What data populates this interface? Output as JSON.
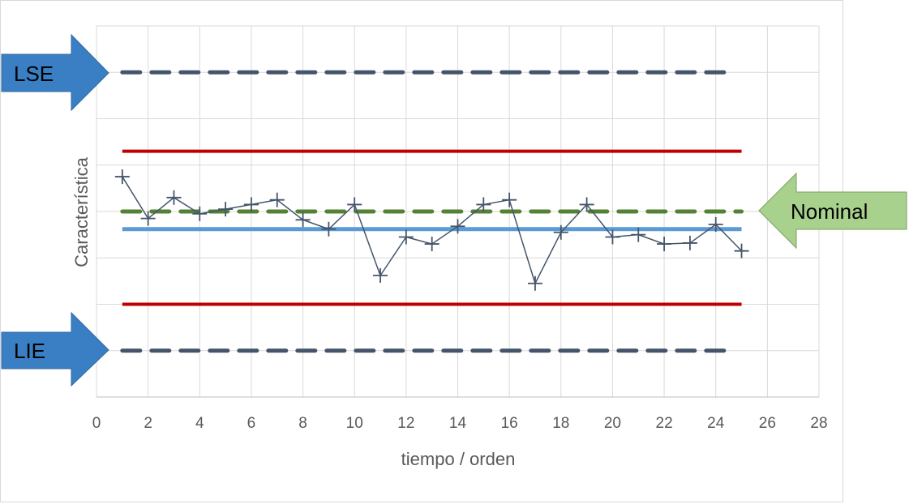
{
  "chart_data": {
    "type": "line",
    "xlabel": "tiempo / orden",
    "ylabel": "Característica",
    "xlim": [
      0,
      28
    ],
    "x_ticks": [
      0,
      2,
      4,
      6,
      8,
      10,
      12,
      14,
      16,
      18,
      20,
      22,
      24,
      26,
      28
    ],
    "ylim": [
      0,
      8
    ],
    "y_ticks_shown": false,
    "grid": true,
    "series": [
      {
        "x": [
          1,
          2,
          3,
          4,
          5,
          6,
          7,
          8,
          9,
          10,
          11,
          12,
          13,
          14,
          15,
          16,
          17,
          18,
          19,
          20,
          21,
          22,
          23,
          24,
          25
        ],
        "values": [
          4.75,
          3.85,
          4.3,
          3.95,
          4.05,
          4.15,
          4.25,
          3.82,
          3.62,
          4.15,
          2.62,
          3.45,
          3.3,
          3.68,
          4.15,
          4.25,
          2.45,
          3.55,
          4.15,
          3.45,
          3.5,
          3.3,
          3.32,
          3.72,
          3.15
        ],
        "color": "#44546a",
        "marker": "plus"
      }
    ],
    "reference_lines": [
      {
        "label": "LSE",
        "y": 7.0,
        "x_from": 1,
        "x_to": 24.5,
        "style": "dashed",
        "color": "#44546a"
      },
      {
        "y": 5.3,
        "x_from": 1,
        "x_to": 25,
        "style": "solid",
        "color": "#c00000"
      },
      {
        "label": "Nominal",
        "y": 4.0,
        "x_from": 1,
        "x_to": 25,
        "style": "dashed",
        "color": "#548235"
      },
      {
        "y": 3.62,
        "x_from": 1,
        "x_to": 25,
        "style": "solid",
        "color": "#5b9bd5"
      },
      {
        "y": 2.0,
        "x_from": 1,
        "x_to": 25,
        "style": "solid",
        "color": "#c00000"
      },
      {
        "label": "LIE",
        "y": 1.0,
        "x_from": 1,
        "x_to": 24.5,
        "style": "dashed",
        "color": "#44546a"
      }
    ]
  },
  "callouts": {
    "lse": {
      "text": "LSE",
      "color": "#3a7fc4"
    },
    "lie": {
      "text": "LIE",
      "color": "#3a7fc4"
    },
    "nominal": {
      "text": "Nominal",
      "color": "#a9d18e"
    }
  }
}
